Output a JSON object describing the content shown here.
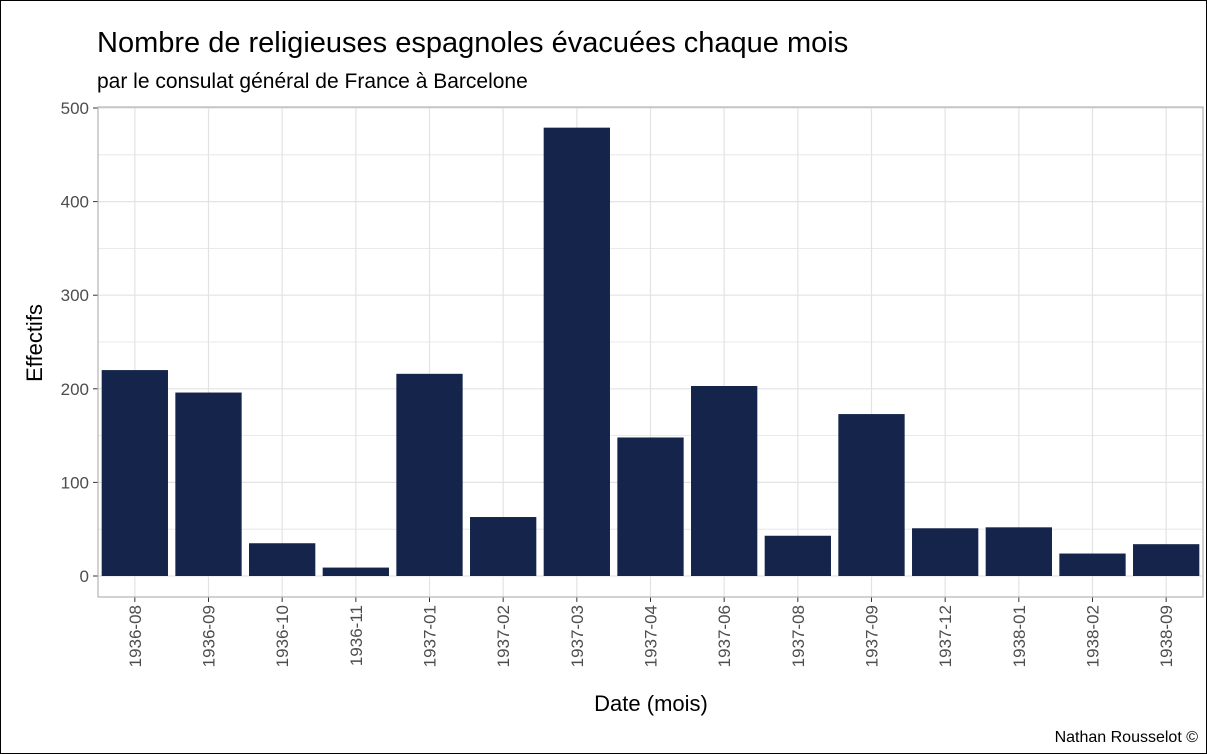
{
  "chart_data": {
    "type": "bar",
    "title": "Nombre de religieuses espagnoles évacuées chaque mois",
    "subtitle": "par le consulat général de France à Barcelone",
    "xlabel": "Date (mois)",
    "ylabel": "Effectifs",
    "caption": "Nathan Rousselot ©",
    "categories": [
      "1936-08",
      "1936-09",
      "1936-10",
      "1936-11",
      "1937-01",
      "1937-02",
      "1937-03",
      "1937-04",
      "1937-06",
      "1937-08",
      "1937-09",
      "1937-12",
      "1938-01",
      "1938-02",
      "1938-09"
    ],
    "values": [
      220,
      196,
      35,
      9,
      216,
      63,
      479,
      148,
      203,
      43,
      173,
      51,
      52,
      24,
      34
    ],
    "ylim": [
      0,
      500
    ],
    "yticks": [
      0,
      100,
      200,
      300,
      400,
      500
    ],
    "grid": true,
    "bar_color": "#14244a",
    "grid_color": "#e3e3e3",
    "tick_label_color": "#4d4d4d"
  }
}
